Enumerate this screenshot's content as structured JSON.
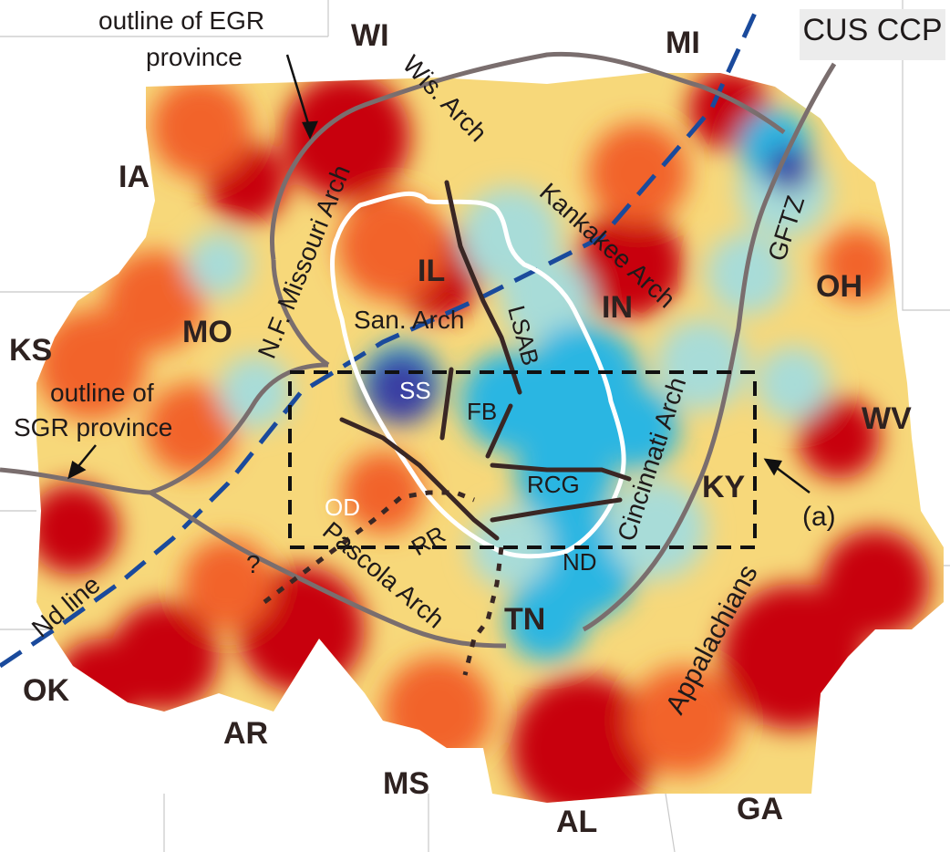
{
  "title": "CUS CCP",
  "colors": {
    "hot": "#c8000e",
    "warm": "#f2632b",
    "mid": "#f7d87a",
    "cool": "#a8dcd8",
    "cold": "#2ab6e2",
    "deep": "#3a3fa3",
    "arch_line": "#7a6e6e",
    "boundary_white": "#ffffff",
    "fault_dark": "#3a2724",
    "nd_line": "#1a4a9c",
    "dash_box": "#111111"
  },
  "states": [
    {
      "key": "wi",
      "label": "WI"
    },
    {
      "key": "mi",
      "label": "MI"
    },
    {
      "key": "ia",
      "label": "IA"
    },
    {
      "key": "il",
      "label": "IL"
    },
    {
      "key": "in",
      "label": "IN"
    },
    {
      "key": "oh",
      "label": "OH"
    },
    {
      "key": "ks",
      "label": "KS"
    },
    {
      "key": "mo",
      "label": "MO"
    },
    {
      "key": "wv",
      "label": "WV"
    },
    {
      "key": "ky",
      "label": "KY"
    },
    {
      "key": "tn",
      "label": "TN"
    },
    {
      "key": "ok",
      "label": "OK"
    },
    {
      "key": "ar",
      "label": "AR"
    },
    {
      "key": "ms",
      "label": "MS"
    },
    {
      "key": "al",
      "label": "AL"
    },
    {
      "key": "ga",
      "label": "GA"
    }
  ],
  "features": {
    "wis_arch": "Wis. Arch",
    "kankakee_arch": "Kankakee Arch",
    "nf_missouri_arch": "N.F. Missouri Arch",
    "gftz": "GFTZ",
    "san_arch": "San. Arch",
    "lsab": "LSAB",
    "ss": "SS",
    "fb": "FB",
    "rcg": "RCG",
    "od": "OD",
    "rr": "RR",
    "nd": "ND",
    "cincinnati_arch": "Cincinnati Arch",
    "pascola_arch": "Pascola Arch",
    "appalachians": "Appalachians",
    "nd_line": "Nd line",
    "question": "?"
  },
  "annotations": {
    "egr_line1": "outline of EGR",
    "egr_line2": "province",
    "sgr_line1": "outline of",
    "sgr_line2": "SGR province",
    "panel_a": "(a)"
  }
}
